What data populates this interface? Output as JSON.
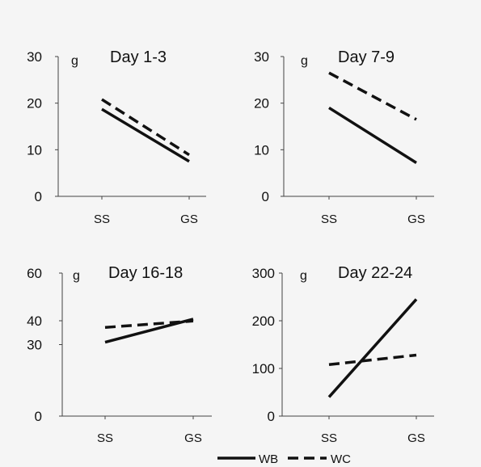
{
  "colors": {
    "background": "#f5f5f5",
    "ink": "#111111"
  },
  "legend": {
    "placement": "bottom-center"
  },
  "chart_data": [
    {
      "type": "line",
      "title": "Day 1-3",
      "ylabel": "g",
      "categories": [
        "SS",
        "GS"
      ],
      "ylim": [
        0,
        30
      ],
      "yticks": [
        0,
        10,
        20,
        30
      ],
      "series": [
        {
          "name": "WB",
          "values": [
            18.7,
            7.5
          ]
        },
        {
          "name": "WC",
          "values": [
            20.8,
            8.9
          ]
        }
      ]
    },
    {
      "type": "line",
      "title": "Day 7-9",
      "ylabel": "g",
      "categories": [
        "SS",
        "GS"
      ],
      "ylim": [
        0,
        30
      ],
      "yticks": [
        0,
        10,
        20,
        30
      ],
      "series": [
        {
          "name": "WB",
          "values": [
            19.0,
            7.2
          ]
        },
        {
          "name": "WC",
          "values": [
            26.5,
            16.5
          ]
        }
      ]
    },
    {
      "type": "line",
      "title": "Day 16-18",
      "ylabel": "g",
      "categories": [
        "SS",
        "GS"
      ],
      "ylim": [
        0,
        60
      ],
      "yticks": [
        0,
        30,
        40,
        60
      ],
      "series": [
        {
          "name": "WB",
          "values": [
            31.0,
            40.7
          ]
        },
        {
          "name": "WC",
          "values": [
            37.2,
            39.9
          ]
        }
      ]
    },
    {
      "type": "line",
      "title": "Day 22-24",
      "ylabel": "g",
      "categories": [
        "SS",
        "GS"
      ],
      "ylim": [
        0,
        300
      ],
      "yticks": [
        0,
        100,
        200,
        300
      ],
      "series": [
        {
          "name": "WB",
          "values": [
            40,
            245
          ]
        },
        {
          "name": "WC",
          "values": [
            108,
            128
          ]
        }
      ]
    }
  ]
}
